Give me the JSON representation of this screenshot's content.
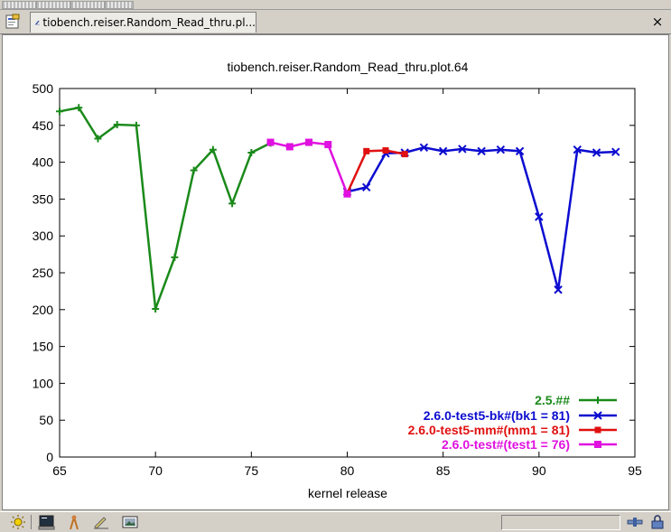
{
  "window": {
    "tab_title": "tiobench.reiser.Random_Read_thru.pl...",
    "close_symbol": "×"
  },
  "icons": {
    "doc_icon": "document-icon",
    "tab_icon": "pencil-icon",
    "taskbar": [
      "sun-icon",
      "terminal-icon",
      "person-icon",
      "pencil-icon",
      "picture-icon"
    ],
    "tray": [
      "plug-icon",
      "lock-icon"
    ]
  },
  "chart_data": {
    "type": "line",
    "title": "tiobench.reiser.Random_Read_thru.plot.64",
    "xlabel": "kernel release",
    "ylabel": "",
    "xlim": [
      65,
      95
    ],
    "ylim": [
      0,
      500
    ],
    "xticks": [
      65,
      70,
      75,
      80,
      85,
      90,
      95
    ],
    "yticks": [
      0,
      50,
      100,
      150,
      200,
      250,
      300,
      350,
      400,
      450,
      500
    ],
    "grid": false,
    "legend_position": "bottom-right",
    "series": [
      {
        "name": "2.5.##",
        "color": "#1a8a1a",
        "marker": "plus",
        "points": [
          [
            65,
            469
          ],
          [
            66,
            474
          ],
          [
            67,
            432
          ],
          [
            68,
            451
          ],
          [
            69,
            450
          ],
          [
            70,
            201
          ],
          [
            71,
            271
          ],
          [
            72,
            389
          ],
          [
            73,
            417
          ],
          [
            74,
            344
          ],
          [
            75,
            413
          ],
          [
            76,
            426
          ]
        ]
      },
      {
        "name": "2.6.0-test5-bk#(bk1 = 81)",
        "color": "#0c0cd0",
        "marker": "cross",
        "points": [
          [
            80,
            360
          ],
          [
            81,
            366
          ],
          [
            82,
            412
          ],
          [
            83,
            413
          ],
          [
            84,
            420
          ],
          [
            85,
            415
          ],
          [
            86,
            418
          ],
          [
            87,
            415
          ],
          [
            88,
            417
          ],
          [
            89,
            415
          ],
          [
            90,
            326
          ],
          [
            91,
            227
          ],
          [
            92,
            417
          ],
          [
            93,
            413
          ],
          [
            94,
            414
          ]
        ]
      },
      {
        "name": "2.6.0-test5-mm#(mm1 = 81)",
        "color": "#e01010",
        "marker": "filled-square",
        "points": [
          [
            80,
            358
          ],
          [
            81,
            415
          ],
          [
            82,
            416
          ],
          [
            83,
            411
          ]
        ]
      },
      {
        "name": "2.6.0-test#(test1 = 76)",
        "color": "#e010e0",
        "marker": "open-square",
        "points": [
          [
            76,
            427
          ],
          [
            77,
            421
          ],
          [
            78,
            427
          ],
          [
            79,
            424
          ],
          [
            80,
            357
          ]
        ]
      }
    ]
  }
}
